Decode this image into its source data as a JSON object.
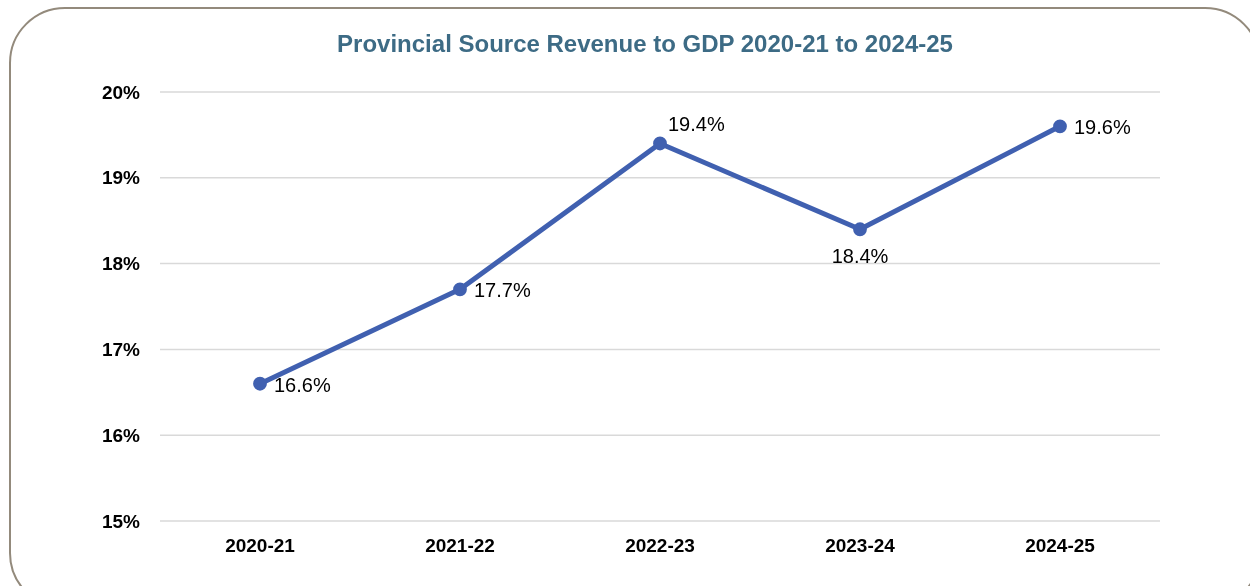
{
  "chart_data": {
    "type": "line",
    "title": "Provincial Source Revenue to GDP 2020-21 to 2024-25",
    "categories": [
      "2020-21",
      "2021-22",
      "2022-23",
      "2023-24",
      "2024-25"
    ],
    "series": [
      {
        "color": "#4060b0",
        "values": [
          16.6,
          17.7,
          19.4,
          18.4,
          19.6
        ],
        "value_labels": [
          "16.6%",
          "17.7%",
          "19.4%",
          "18.4%",
          "19.6%"
        ]
      }
    ],
    "ylim": [
      15,
      20
    ],
    "yticks": [
      {
        "value": 15,
        "label": "15%"
      },
      {
        "value": 16,
        "label": "16%"
      },
      {
        "value": 17,
        "label": "17%"
      },
      {
        "value": 18,
        "label": "18%"
      },
      {
        "value": 19,
        "label": "19%"
      },
      {
        "value": 20,
        "label": "20%"
      }
    ],
    "grid": "y",
    "marker": "circle",
    "line_style": "solid"
  }
}
